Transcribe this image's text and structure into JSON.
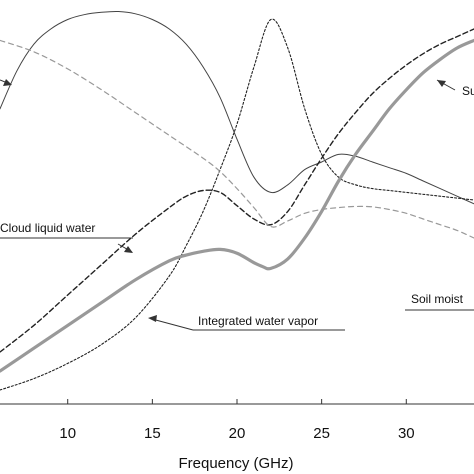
{
  "chart_data": {
    "type": "line",
    "xlabel": "Frequency (GHz)",
    "ylabel": "",
    "title": "",
    "xlim": [
      6,
      34
    ],
    "ylim": [
      0,
      100
    ],
    "x_ticks": [
      10,
      15,
      20,
      25,
      30
    ],
    "grid": false,
    "legend": "none",
    "series": [
      {
        "name": "Su",
        "style": "solid-thin",
        "color": "#444444",
        "x": [
          6,
          7,
          8,
          9,
          10,
          11,
          12,
          13,
          14,
          15,
          16,
          17,
          18,
          19,
          20,
          21,
          22,
          23,
          24,
          25,
          26,
          27,
          28,
          29,
          30,
          31,
          32,
          33,
          34
        ],
        "y": [
          74,
          84,
          91,
          95,
          97.5,
          98.8,
          99.4,
          99.6,
          99,
          97.5,
          95,
          91,
          85,
          77,
          66,
          56,
          52,
          54,
          58,
          60,
          62,
          61.5,
          60,
          58.5,
          57,
          55,
          53,
          51,
          49
        ]
      },
      {
        "name": "Cloud liquid water",
        "style": "dashed",
        "color": "#222222",
        "x": [
          6,
          8,
          10,
          12,
          14,
          16,
          17,
          18,
          19,
          20,
          21,
          22,
          23,
          24,
          25,
          26,
          27,
          28,
          29,
          30,
          31,
          32,
          33,
          34
        ],
        "y": [
          10,
          17,
          25,
          33,
          41,
          48,
          51,
          52.5,
          52,
          48.5,
          45,
          43.5,
          47,
          54,
          61,
          67.5,
          73,
          78,
          82,
          85.5,
          88.5,
          91,
          93,
          95
        ]
      },
      {
        "name": "Integrated water vapor",
        "style": "dotted",
        "color": "#222222",
        "x": [
          6,
          8,
          10,
          12,
          14,
          16,
          17,
          18,
          19,
          20,
          21,
          22,
          23,
          24,
          25,
          26,
          27,
          28,
          29,
          30,
          31,
          32,
          33,
          34
        ],
        "y": [
          0,
          3,
          7,
          12,
          19,
          30,
          38,
          47,
          58,
          70,
          85,
          97.5,
          90,
          74,
          62,
          56,
          54,
          53,
          52.5,
          52,
          51.5,
          51,
          50.5,
          50
        ]
      },
      {
        "name": "Soil moist",
        "style": "dashed-light",
        "color": "#999999",
        "x": [
          6,
          8,
          10,
          12,
          14,
          16,
          18,
          19,
          20,
          21,
          22,
          23,
          24,
          25,
          26,
          27,
          28,
          29,
          30,
          31,
          32,
          33,
          34
        ],
        "y": [
          92,
          89,
          84.5,
          79,
          73,
          67,
          61,
          57.5,
          53,
          48,
          43,
          44.5,
          46.5,
          47.5,
          48,
          48.3,
          48.2,
          47.5,
          46.5,
          45,
          43.5,
          42,
          40
        ]
      },
      {
        "name": "",
        "style": "solid-thick",
        "color": "#999999",
        "x": [
          6,
          8,
          10,
          12,
          14,
          16,
          17,
          18,
          19,
          20,
          21,
          21.5,
          22,
          23,
          24,
          25,
          26,
          27,
          28,
          29,
          30,
          31,
          32,
          33,
          34
        ],
        "y": [
          5,
          11,
          17,
          23,
          29,
          34,
          35.5,
          36.5,
          37,
          36,
          33.5,
          32.5,
          32,
          34.5,
          40,
          47,
          55,
          62,
          68,
          74,
          79,
          83.5,
          87,
          90,
          92
        ]
      }
    ],
    "annotations": [
      {
        "text": "Su",
        "target_series": "Su"
      },
      {
        "text": "Cloud liquid water",
        "target_series": "Cloud liquid water"
      },
      {
        "text": "Integrated water vapor",
        "target_series": "Integrated water vapor"
      },
      {
        "text": "Soil moist",
        "target_series": "Soil moist"
      }
    ]
  }
}
